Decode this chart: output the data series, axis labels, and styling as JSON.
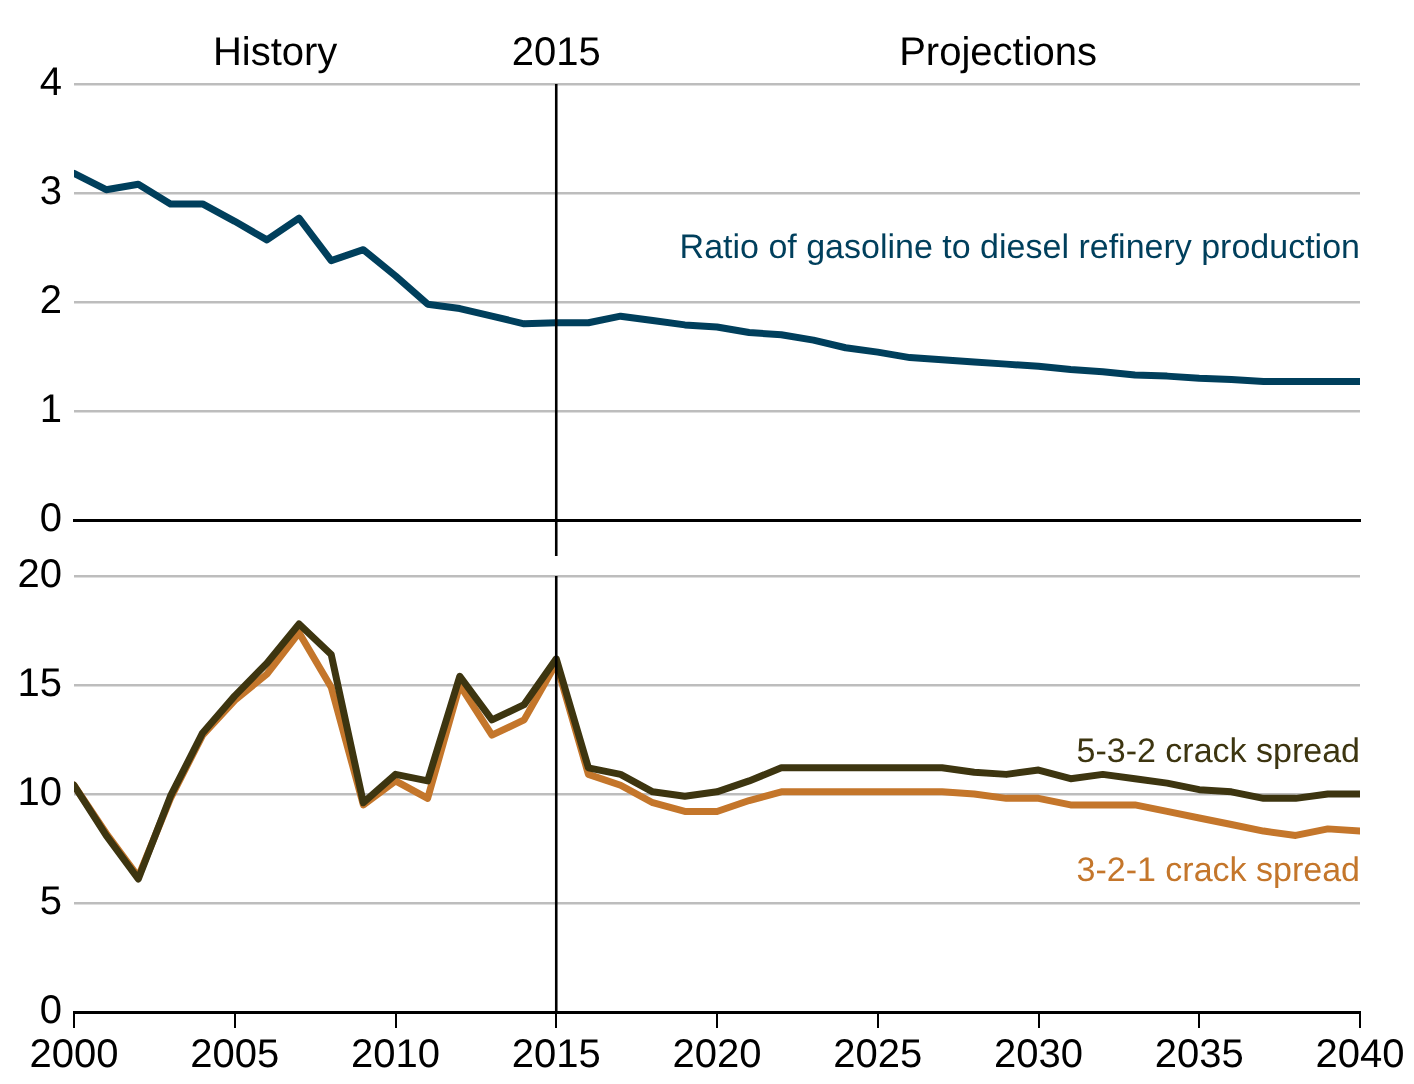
{
  "chart_data": [
    {
      "type": "line",
      "annotations": [
        "History",
        "Projections"
      ],
      "x": [
        2000,
        2001,
        2002,
        2003,
        2004,
        2005,
        2006,
        2007,
        2008,
        2009,
        2010,
        2011,
        2012,
        2013,
        2014,
        2015,
        2016,
        2017,
        2018,
        2019,
        2020,
        2021,
        2022,
        2023,
        2024,
        2025,
        2026,
        2027,
        2028,
        2029,
        2030,
        2031,
        2032,
        2033,
        2034,
        2035,
        2036,
        2037,
        2038,
        2039,
        2040
      ],
      "series": [
        {
          "name": "Ratio of gasoline to diesel refinery production",
          "color": "#003f5c",
          "values": [
            3.18,
            3.03,
            3.08,
            2.9,
            2.9,
            2.74,
            2.57,
            2.77,
            2.38,
            2.48,
            2.24,
            1.98,
            1.94,
            1.87,
            1.8,
            1.81,
            1.81,
            1.87,
            1.83,
            1.79,
            1.77,
            1.72,
            1.7,
            1.65,
            1.58,
            1.54,
            1.49,
            1.47,
            1.45,
            1.43,
            1.41,
            1.38,
            1.36,
            1.33,
            1.32,
            1.3,
            1.29,
            1.27,
            1.27,
            1.27,
            1.27
          ]
        }
      ],
      "xlim": [
        2000,
        2040
      ],
      "ylim": [
        0,
        4
      ],
      "yticks": [
        0,
        1,
        2,
        3,
        4
      ],
      "grid": "y",
      "legend": false,
      "tick_labels": "y",
      "marker": "none",
      "line_style": "solid",
      "ref_lines": [
        {
          "axis": "x",
          "value": 2015,
          "label": "2015"
        }
      ]
    },
    {
      "type": "line",
      "x": [
        2000,
        2001,
        2002,
        2003,
        2004,
        2005,
        2006,
        2007,
        2008,
        2009,
        2010,
        2011,
        2012,
        2013,
        2014,
        2015,
        2016,
        2017,
        2018,
        2019,
        2020,
        2021,
        2022,
        2023,
        2024,
        2025,
        2026,
        2027,
        2028,
        2029,
        2030,
        2031,
        2032,
        2033,
        2034,
        2035,
        2036,
        2037,
        2038,
        2039,
        2040
      ],
      "series": [
        {
          "name": "5-3-2 crack spread",
          "color": "#3d3510",
          "values": [
            10.4,
            8.1,
            6.1,
            9.9,
            12.8,
            14.5,
            16.0,
            17.8,
            16.4,
            9.6,
            10.9,
            10.6,
            15.4,
            13.4,
            14.1,
            16.2,
            11.2,
            10.9,
            10.1,
            9.9,
            10.1,
            10.6,
            11.2,
            11.2,
            11.2,
            11.2,
            11.2,
            11.2,
            11.0,
            10.9,
            11.1,
            10.7,
            10.9,
            10.7,
            10.5,
            10.2,
            10.1,
            9.8,
            9.8,
            10.0,
            10.0
          ]
        },
        {
          "name": "3-2-1 crack spread",
          "color": "#c4762b",
          "values": [
            10.4,
            8.2,
            6.2,
            9.8,
            12.7,
            14.3,
            15.5,
            17.4,
            14.9,
            9.5,
            10.6,
            9.8,
            15.0,
            12.7,
            13.4,
            16.0,
            10.9,
            10.4,
            9.6,
            9.2,
            9.2,
            9.7,
            10.1,
            10.1,
            10.1,
            10.1,
            10.1,
            10.1,
            10.0,
            9.8,
            9.8,
            9.5,
            9.5,
            9.5,
            9.2,
            8.9,
            8.6,
            8.3,
            8.1,
            8.4,
            8.3
          ]
        }
      ],
      "xlim": [
        2000,
        2040
      ],
      "xticks": [
        2000,
        2005,
        2010,
        2015,
        2020,
        2025,
        2030,
        2035,
        2040
      ],
      "ylim": [
        0,
        20
      ],
      "yticks": [
        0,
        5,
        10,
        15,
        20
      ],
      "grid": "y",
      "legend": false,
      "marker": "none",
      "line_style": "solid",
      "ref_lines": [
        {
          "axis": "x",
          "value": 2015
        }
      ]
    }
  ]
}
